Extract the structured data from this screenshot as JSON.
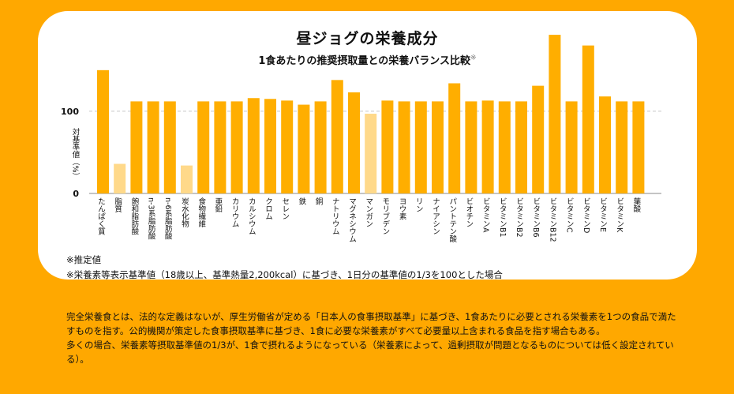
{
  "chart_data": {
    "type": "bar",
    "title": "昼ジョグの栄養成分",
    "subtitle": "1食あたりの推奨摂取量との栄養バランス比較",
    "subtitle_mark": "※",
    "ylabel": "対基準値（%）",
    "yticks": [
      0,
      100
    ],
    "ylim": [
      0,
      195
    ],
    "reference_line": 100,
    "colors": {
      "actual": "#ffae00",
      "estimated": "#ffd98a",
      "grid": "#c8c8c8"
    },
    "categories": [
      "たんぱく質",
      "脂質",
      "飽和脂肪酸",
      "n-3系脂肪酸",
      "n-6系脂肪酸",
      "炭水化物",
      "食物繊維",
      "亜鉛",
      "カリウム",
      "カルシウム",
      "クロム",
      "セレン",
      "鉄",
      "銅",
      "ナトリウム",
      "マグネシウム",
      "マンガン",
      "モリブデン",
      "ヨウ素",
      "リン",
      "ナイアシン",
      "パントテン酸",
      "ビオチン",
      "ビタミンA",
      "ビタミンB1",
      "ビタミンB2",
      "ビタミンB6",
      "ビタミンB12",
      "ビタミンC",
      "ビタミンD",
      "ビタミンE",
      "ビタミンK",
      "葉酸"
    ],
    "values": [
      150,
      36,
      112,
      112,
      112,
      34,
      112,
      112,
      112,
      116,
      115,
      113,
      108,
      112,
      138,
      123,
      97,
      113,
      112,
      112,
      112,
      134,
      112,
      113,
      112,
      112,
      131,
      193,
      112,
      180,
      118,
      112,
      112
    ],
    "estimated": [
      false,
      true,
      false,
      false,
      false,
      true,
      false,
      false,
      false,
      false,
      false,
      false,
      false,
      false,
      false,
      false,
      true,
      false,
      false,
      false,
      false,
      false,
      false,
      false,
      false,
      false,
      false,
      false,
      false,
      false,
      false,
      false,
      false
    ]
  },
  "notes": {
    "line1": "※推定値",
    "line2": "※栄養素等表示基準値（18歳以上、基準熱量2,200kcal）に基づき、1日分の基準値の1/3を100とした場合"
  },
  "footer": {
    "paragraph1": "完全栄養食とは、法的な定義はないが、厚生労働省が定める「日本人の食事摂取基準」に基づき、1食あたりに必要とされる栄養素を1つの食品で満たすものを指す。公的機関が策定した食事摂取基準に基づき、1食に必要な栄養素がすべて必要量以上含まれる食品を指す場合もある。",
    "paragraph2": "多くの場合、栄養素等摂取基準値の1/3が、1食で摂れるようになっている（栄養素によって、過剰摂取が問題となるものについては低く設定されている）。"
  }
}
